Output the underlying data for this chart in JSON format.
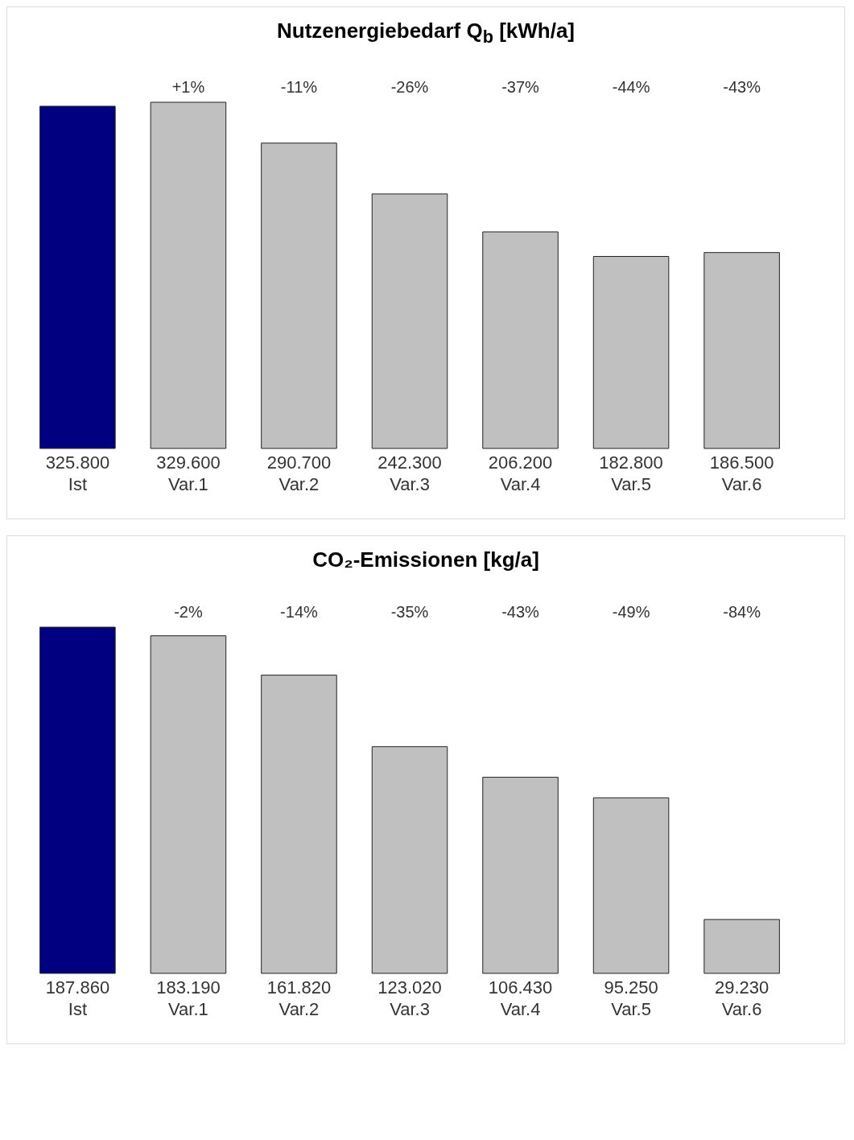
{
  "chart_data": [
    {
      "type": "bar",
      "title": "Nutzenergiebedarf Q$_{b}$  [kWh/a]",
      "categories": [
        "Ist",
        "Var.1",
        "Var.2",
        "Var.3",
        "Var.4",
        "Var.5",
        "Var.6"
      ],
      "values": [
        325800,
        329600,
        290700,
        242300,
        206200,
        182800,
        186500
      ],
      "value_labels": [
        "325.800",
        "329.600",
        "290.700",
        "242.300",
        "206.200",
        "182.800",
        "186.500"
      ],
      "colors": [
        "#000080",
        "#c0c0c0",
        "#c0c0c0",
        "#c0c0c0",
        "#c0c0c0",
        "#c0c0c0",
        "#c0c0c0"
      ],
      "annotations": [
        "+1%",
        "-11%",
        "-26%",
        "-37%",
        "-44%",
        "-43%"
      ],
      "grid": false
    },
    {
      "type": "bar",
      "title": "CO₂-Emissionen  [kg/a]",
      "categories": [
        "Ist",
        "Var.1",
        "Var.2",
        "Var.3",
        "Var.4",
        "Var.5",
        "Var.6"
      ],
      "values": [
        187860,
        183190,
        161820,
        123020,
        106430,
        95250,
        29230
      ],
      "value_labels": [
        "187.860",
        "183.190",
        "161.820",
        "123.020",
        "106.430",
        "95.250",
        "29.230"
      ],
      "colors": [
        "#000080",
        "#c0c0c0",
        "#c0c0c0",
        "#c0c0c0",
        "#c0c0c0",
        "#c0c0c0",
        "#c0c0c0"
      ],
      "annotations": [
        "-2%",
        "-14%",
        "-35%",
        "-43%",
        "-49%",
        "-84%"
      ],
      "grid": false
    }
  ]
}
